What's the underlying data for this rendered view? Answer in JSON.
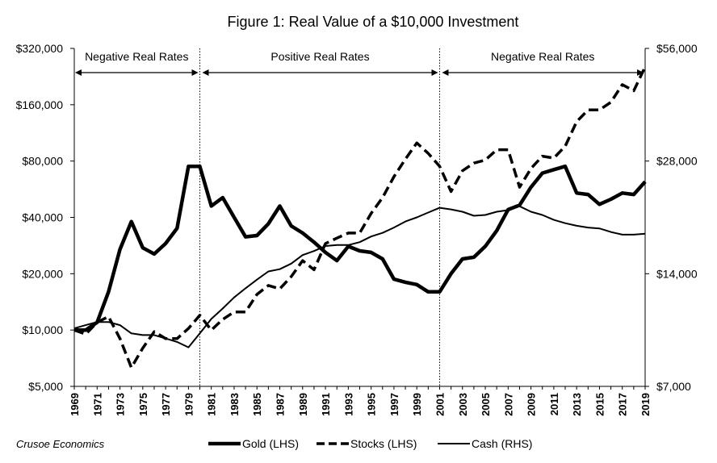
{
  "chart_data": {
    "type": "line",
    "title": "Figure 1: Real Value of a $10,000 Investment",
    "source": "Crusoe Economics",
    "x": [
      1969,
      1970,
      1971,
      1972,
      1973,
      1974,
      1975,
      1976,
      1977,
      1978,
      1979,
      1980,
      1981,
      1982,
      1983,
      1984,
      1985,
      1986,
      1987,
      1988,
      1989,
      1990,
      1991,
      1992,
      1993,
      1994,
      1995,
      1996,
      1997,
      1998,
      1999,
      2000,
      2001,
      2002,
      2003,
      2004,
      2005,
      2006,
      2007,
      2008,
      2009,
      2010,
      2011,
      2012,
      2013,
      2014,
      2015,
      2016,
      2017,
      2018,
      2019
    ],
    "x_tick_labels": [
      "1969",
      "1971",
      "1973",
      "1975",
      "1977",
      "1979",
      "1981",
      "1983",
      "1985",
      "1987",
      "1989",
      "1991",
      "1993",
      "1995",
      "1997",
      "1999",
      "2001",
      "2003",
      "2005",
      "2007",
      "2009",
      "2011",
      "2013",
      "2015",
      "2017",
      "2019"
    ],
    "left_axis": {
      "scale": "log2",
      "ylim": [
        5000,
        320000
      ],
      "tick_values": [
        5000,
        10000,
        20000,
        40000,
        80000,
        160000,
        320000
      ],
      "tick_labels": [
        "$5,000",
        "$10,000",
        "$20,000",
        "$40,000",
        "$80,000",
        "$160,000",
        "$320,000"
      ]
    },
    "right_axis": {
      "scale": "log2",
      "ylim": [
        7000,
        56000
      ],
      "tick_values": [
        7000,
        14000,
        28000,
        56000
      ],
      "tick_labels": [
        "$7,000",
        "$14,000",
        "$28,000",
        "$56,000"
      ]
    },
    "series": [
      {
        "name": "Gold (LHS)",
        "axis": "left",
        "style": "thick-solid",
        "values": [
          10000,
          10000,
          11000,
          16000,
          27000,
          38000,
          27500,
          25500,
          29000,
          35000,
          75000,
          75000,
          46000,
          51000,
          40000,
          31500,
          32000,
          37000,
          46000,
          36000,
          33000,
          29500,
          26000,
          23500,
          28000,
          26500,
          26000,
          24000,
          18700,
          18000,
          17500,
          16000,
          16000,
          20000,
          24000,
          24500,
          28000,
          34000,
          44000,
          46500,
          58000,
          69000,
          72000,
          75000,
          54000,
          53000,
          47000,
          50000,
          54000,
          53000,
          62000
        ]
      },
      {
        "name": "Stocks (LHS)",
        "axis": "left",
        "style": "dashed",
        "values": [
          10000,
          9500,
          11000,
          11800,
          9000,
          6300,
          8000,
          9800,
          9000,
          9000,
          10200,
          12000,
          10000,
          11400,
          12500,
          12500,
          15500,
          17300,
          16600,
          19300,
          23500,
          21000,
          29000,
          31000,
          33000,
          33000,
          42000,
          51000,
          66000,
          82000,
          100000,
          88000,
          75000,
          55000,
          71000,
          78000,
          81000,
          92000,
          92000,
          58000,
          73000,
          85000,
          83000,
          96000,
          130000,
          150000,
          150000,
          165000,
          205000,
          190000,
          255000
        ]
      },
      {
        "name": "Cash (RHS)",
        "axis": "right",
        "style": "thin-solid",
        "values": [
          10000,
          10200,
          10400,
          10400,
          10200,
          9700,
          9600,
          9600,
          9400,
          9200,
          8900,
          9700,
          10600,
          11300,
          12100,
          12800,
          13500,
          14200,
          14400,
          14900,
          15700,
          16100,
          16600,
          16700,
          16700,
          17000,
          17600,
          18000,
          18600,
          19300,
          19800,
          20400,
          21000,
          20800,
          20500,
          20000,
          20100,
          20500,
          20700,
          21200,
          20500,
          20100,
          19500,
          19100,
          18800,
          18600,
          18500,
          18100,
          17800,
          17800,
          17900
        ]
      }
    ],
    "regions": [
      {
        "label": "Negative Real Rates",
        "start": 1969,
        "end": 1980
      },
      {
        "label": "Positive Real Rates",
        "start": 1980,
        "end": 2001
      },
      {
        "label": "Negative Real Rates",
        "start": 2001,
        "end": 2019
      }
    ],
    "legend_placement": "bottom",
    "grid": false
  }
}
